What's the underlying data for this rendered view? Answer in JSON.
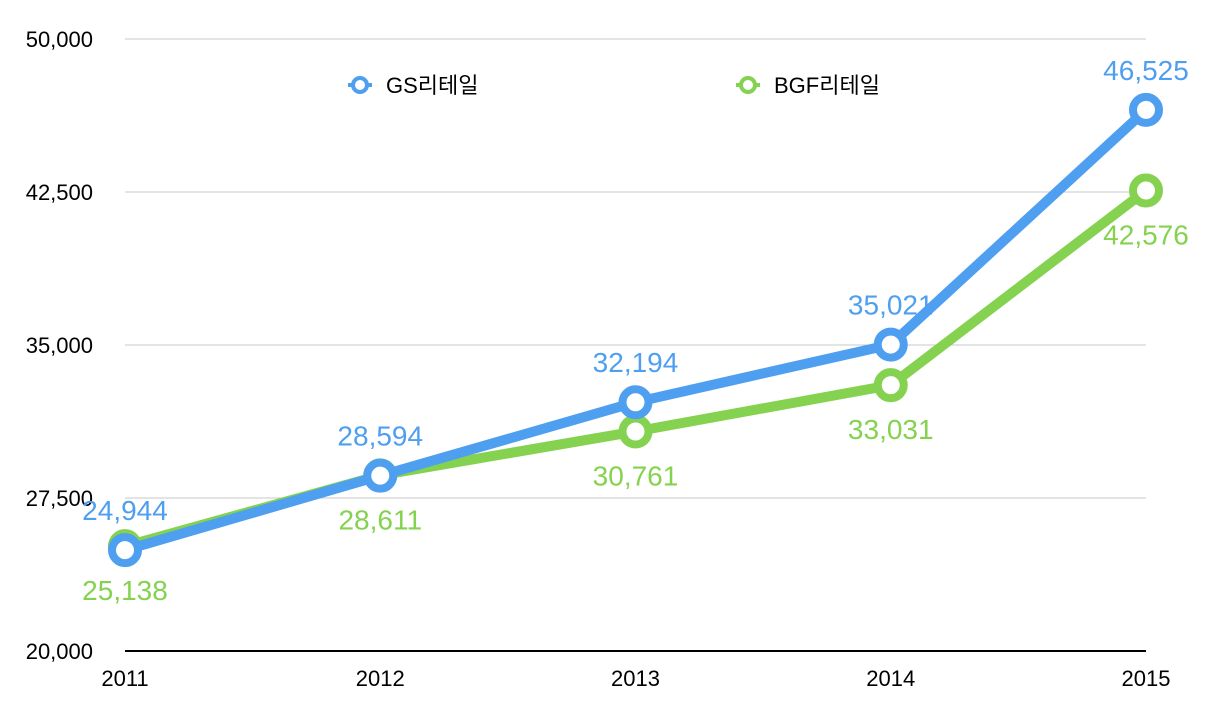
{
  "chart_data": {
    "type": "line",
    "title": "",
    "xlabel": "",
    "ylabel": "",
    "categories": [
      "2011",
      "2012",
      "2013",
      "2014",
      "2015"
    ],
    "ylim": [
      20000,
      50000
    ],
    "yticks": [
      20000,
      27500,
      35000,
      42500,
      50000
    ],
    "ytick_labels": [
      "20,000",
      "27,500",
      "35,000",
      "42,500",
      "50,000"
    ],
    "grid": true,
    "legend_position": "top-center",
    "series": [
      {
        "name": "GS리테일",
        "color": "#4f9ff0",
        "values": [
          24944,
          28594,
          32194,
          35021,
          46525
        ],
        "labels": [
          "24,944",
          "28,594",
          "32,194",
          "35,021",
          "46,525"
        ],
        "label_side": [
          "above",
          "above",
          "above",
          "above",
          "above"
        ]
      },
      {
        "name": "BGF리테일",
        "color": "#84d24f",
        "values": [
          25138,
          28611,
          30761,
          33031,
          42576
        ],
        "labels": [
          "25,138",
          "28,611",
          "30,761",
          "33,031",
          "42,576"
        ],
        "label_side": [
          "below",
          "below",
          "below",
          "below",
          "below"
        ]
      }
    ]
  }
}
